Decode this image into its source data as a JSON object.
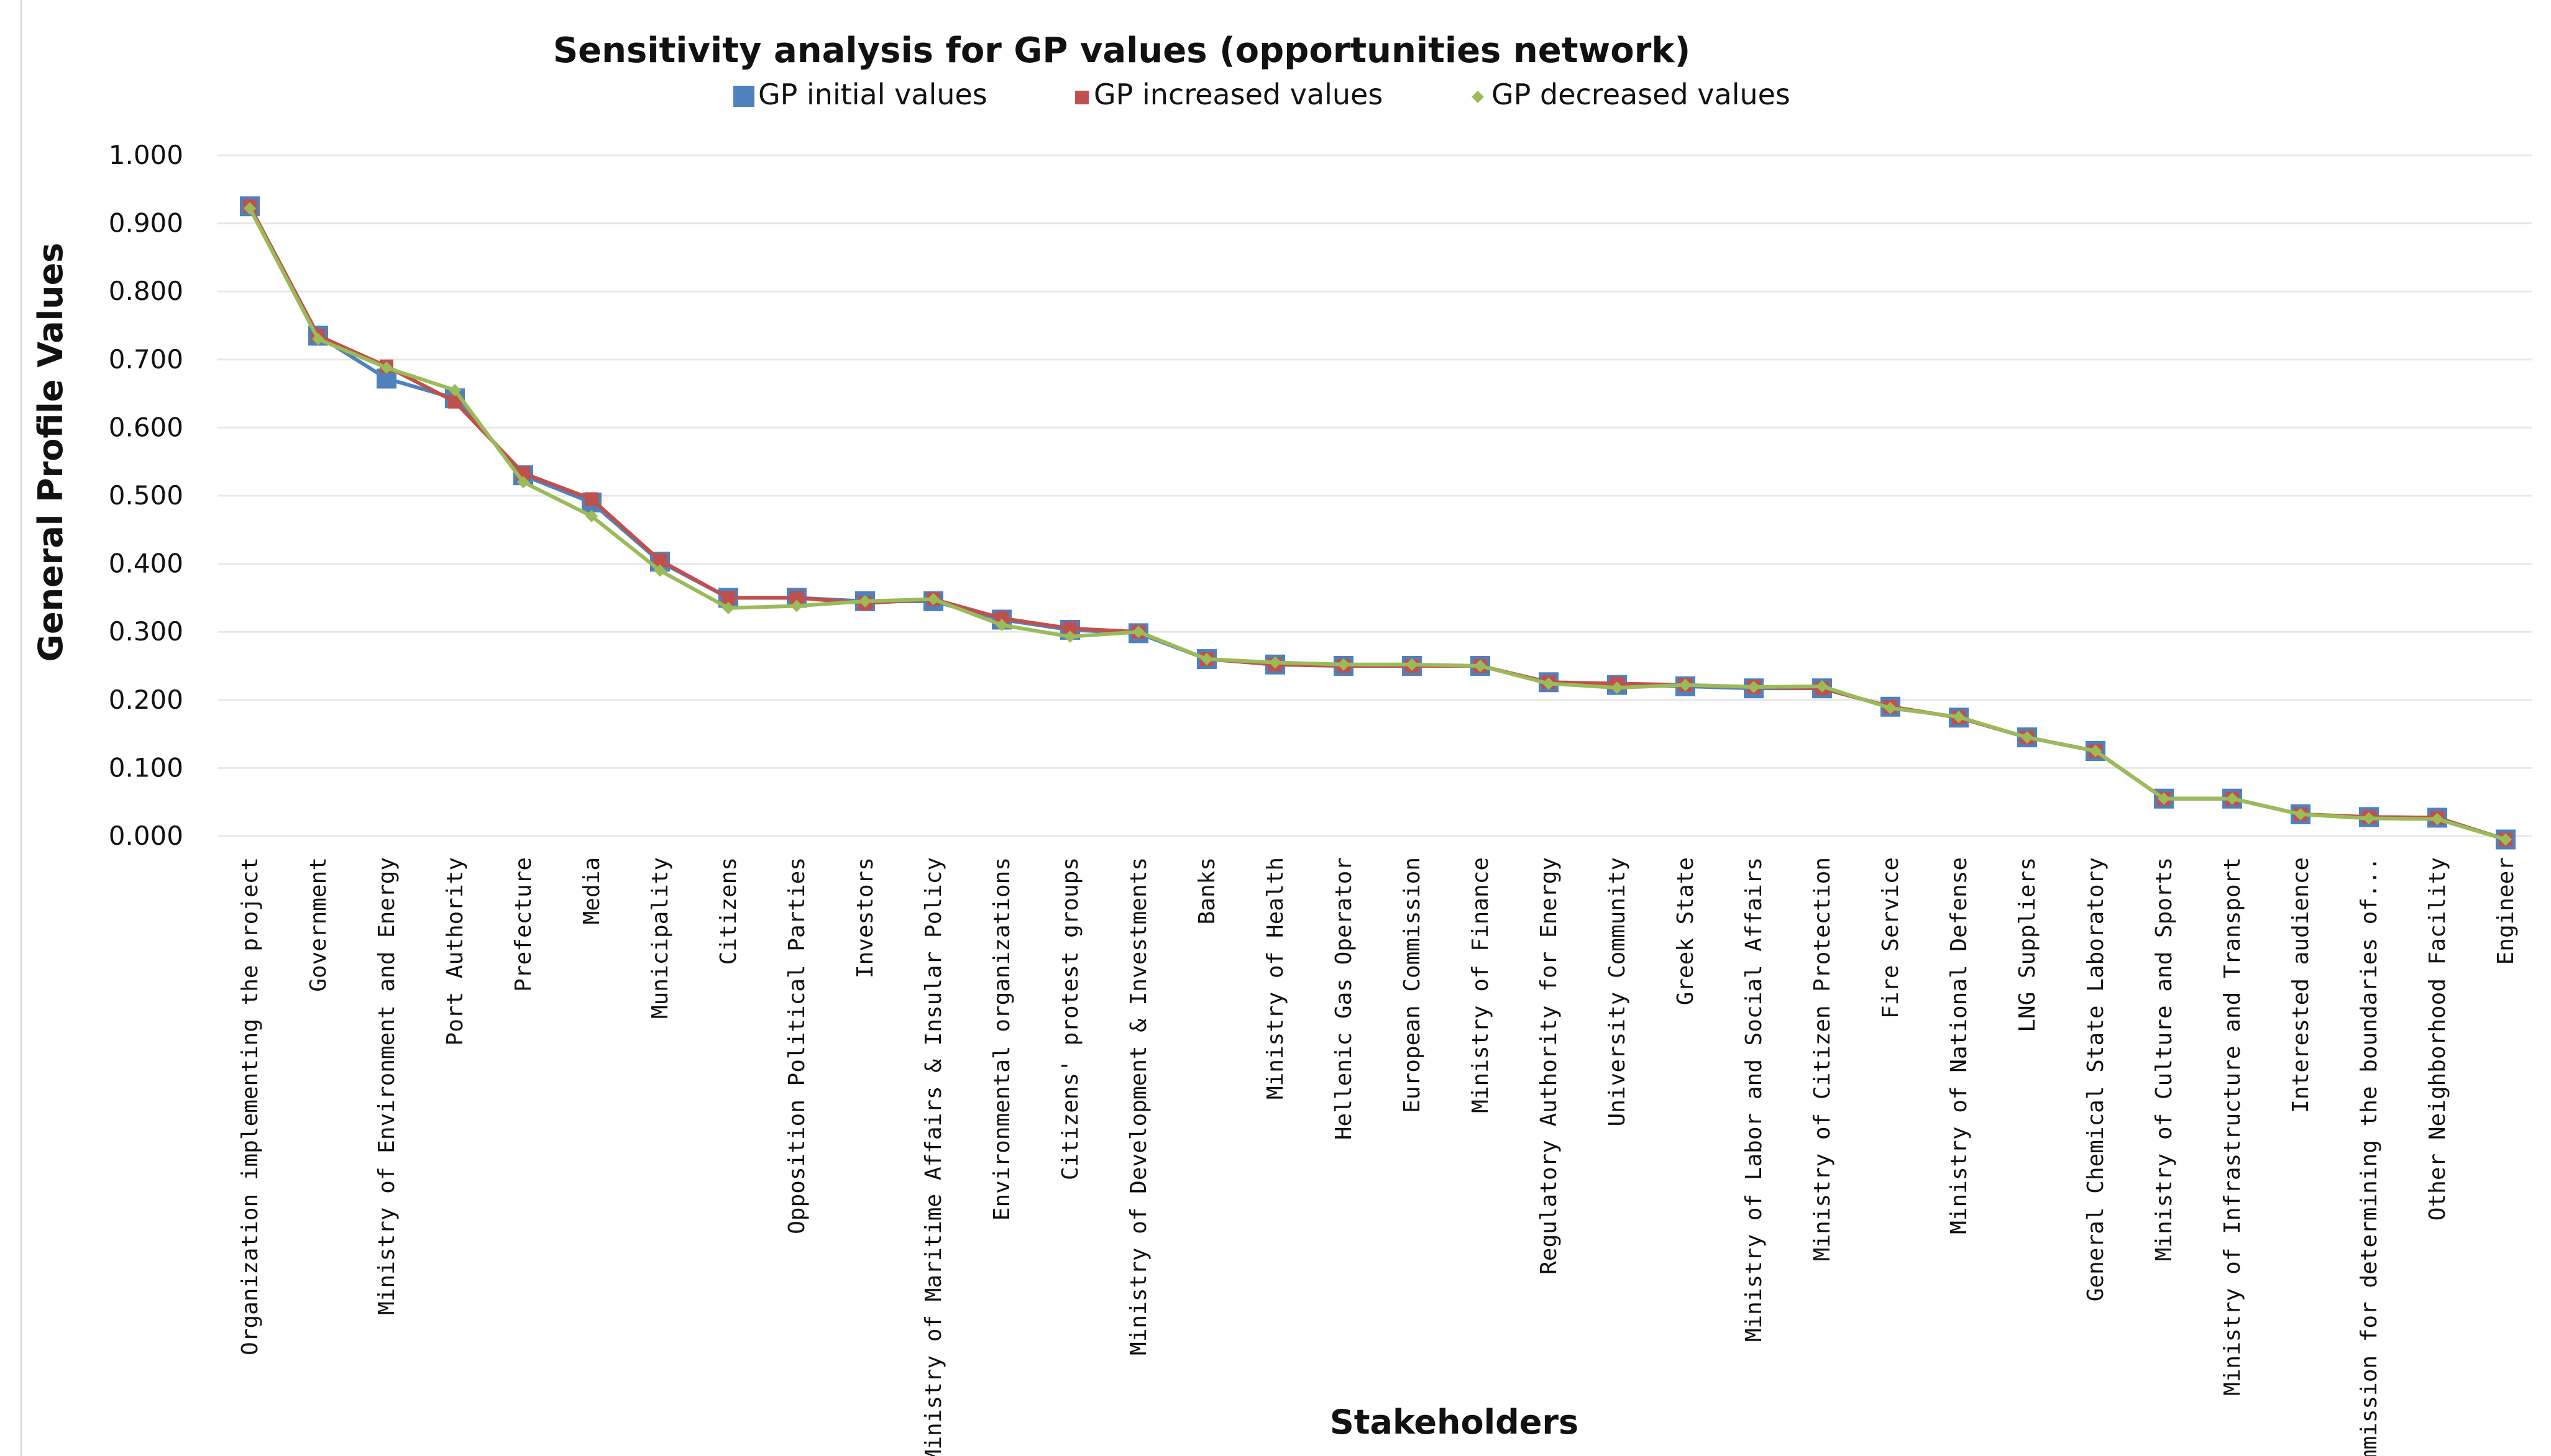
{
  "chart_data": {
    "type": "line",
    "title": "Sensitivity analysis for GP values (opportunities network)",
    "xlabel": "Stakeholders",
    "ylabel": "General Profile Values",
    "ylim": [
      0,
      1
    ],
    "yticks": [
      "1.000",
      "0.900",
      "0.800",
      "0.700",
      "0.600",
      "0.500",
      "0.400",
      "0.300",
      "0.200",
      "0.100",
      "0.000"
    ],
    "legend_position": "top-center",
    "categories": [
      "Organization implementing the project",
      "Government",
      "Ministry of Environment and Energy",
      "Port Authority",
      "Prefecture",
      "Media",
      "Municipality",
      "Citizens",
      "Opposition Political Parties",
      "Investors",
      "Ministry of Maritime Affairs & Insular Policy",
      "Environmental organizations",
      "Citizens' protest groups",
      "Ministry of Development & Investments",
      "Banks",
      "Ministry of Health",
      "Hellenic Gas Operator",
      "European Commission",
      "Ministry of Finance",
      "Regulatory Authority for Energy",
      "University Community",
      "Greek State",
      "Ministry of Labor and Social Affairs",
      "Ministry of Citizen Protection",
      "Fire Service",
      "Ministry of National Defense",
      "LNG Suppliers",
      "General Chemical State Laboratory",
      "Ministry of Culture and Sports",
      "Ministry of Infrastructure and Transport",
      "Interested audience",
      "Commission for determining the boundaries of...",
      "Other Neighborhood Facility",
      "Engineer"
    ],
    "series": [
      {
        "name": "GP initial values",
        "color": "#4f81bd",
        "marker": "square",
        "values": [
          0.925,
          0.735,
          0.672,
          0.643,
          0.53,
          0.49,
          0.403,
          0.35,
          0.35,
          0.345,
          0.345,
          0.318,
          0.303,
          0.298,
          0.26,
          0.252,
          0.25,
          0.25,
          0.25,
          0.226,
          0.222,
          0.22,
          0.217,
          0.217,
          0.19,
          0.174,
          0.145,
          0.125,
          0.055,
          0.055,
          0.032,
          0.028,
          0.027,
          -0.005
        ]
      },
      {
        "name": "GP increased values",
        "color": "#c0504d",
        "marker": "square-small",
        "values": [
          0.925,
          0.735,
          0.69,
          0.638,
          0.533,
          0.495,
          0.405,
          0.35,
          0.35,
          0.342,
          0.348,
          0.32,
          0.305,
          0.3,
          0.26,
          0.252,
          0.25,
          0.25,
          0.25,
          0.226,
          0.224,
          0.222,
          0.219,
          0.217,
          0.19,
          0.174,
          0.145,
          0.125,
          0.055,
          0.055,
          0.032,
          0.028,
          0.027,
          -0.005
        ]
      },
      {
        "name": "GP decreased values",
        "color": "#9bbb59",
        "marker": "diamond",
        "values": [
          0.922,
          0.73,
          0.688,
          0.655,
          0.52,
          0.47,
          0.39,
          0.335,
          0.338,
          0.345,
          0.348,
          0.31,
          0.293,
          0.3,
          0.26,
          0.255,
          0.252,
          0.252,
          0.25,
          0.224,
          0.218,
          0.222,
          0.219,
          0.22,
          0.188,
          0.175,
          0.145,
          0.125,
          0.055,
          0.055,
          0.032,
          0.026,
          0.025,
          -0.005
        ]
      }
    ]
  }
}
